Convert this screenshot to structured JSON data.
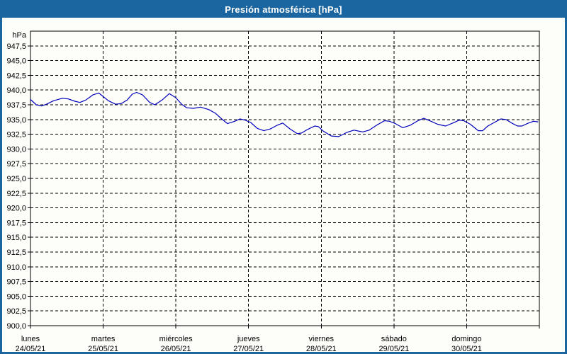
{
  "window": {
    "title": "Presión atmosférica [hPa]",
    "frame_color": "#1b66a0",
    "background": "#fdfdfa"
  },
  "chart_data": {
    "type": "line",
    "title": "Presión atmosférica [hPa]",
    "ylabel": "hPa",
    "ylim": [
      900,
      950
    ],
    "ytick_step": 2.5,
    "grid": true,
    "legend": "none",
    "decimal_separator": ",",
    "x_axis": {
      "unit": "days",
      "days": [
        {
          "label": "lunes",
          "date": "24/05/21"
        },
        {
          "label": "martes",
          "date": "25/05/21"
        },
        {
          "label": "miércoles",
          "date": "26/05/21"
        },
        {
          "label": "jueves",
          "date": "27/05/21"
        },
        {
          "label": "viernes",
          "date": "28/05/21"
        },
        {
          "label": "sábado",
          "date": "29/05/21"
        },
        {
          "label": "domingo",
          "date": "30/05/21"
        }
      ]
    },
    "series": [
      {
        "name": "Presión atmosférica",
        "color": "#0000bb",
        "x_unit": "days_from_start",
        "points": [
          [
            0.0,
            938.4
          ],
          [
            0.08,
            937.5
          ],
          [
            0.15,
            937.3
          ],
          [
            0.22,
            937.6
          ],
          [
            0.32,
            938.2
          ],
          [
            0.44,
            938.6
          ],
          [
            0.52,
            938.5
          ],
          [
            0.61,
            938.1
          ],
          [
            0.68,
            937.9
          ],
          [
            0.76,
            938.3
          ],
          [
            0.86,
            939.2
          ],
          [
            0.94,
            939.5
          ],
          [
            1.0,
            938.9
          ],
          [
            1.07,
            938.2
          ],
          [
            1.17,
            937.6
          ],
          [
            1.25,
            937.7
          ],
          [
            1.33,
            938.3
          ],
          [
            1.4,
            939.3
          ],
          [
            1.46,
            939.6
          ],
          [
            1.54,
            939.2
          ],
          [
            1.64,
            937.9
          ],
          [
            1.71,
            937.5
          ],
          [
            1.81,
            938.3
          ],
          [
            1.91,
            939.4
          ],
          [
            2.0,
            938.7
          ],
          [
            2.08,
            937.6
          ],
          [
            2.15,
            937.0
          ],
          [
            2.24,
            936.9
          ],
          [
            2.34,
            937.1
          ],
          [
            2.45,
            936.7
          ],
          [
            2.54,
            936.1
          ],
          [
            2.63,
            935.1
          ],
          [
            2.71,
            934.3
          ],
          [
            2.81,
            934.7
          ],
          [
            2.88,
            935.1
          ],
          [
            2.95,
            934.9
          ],
          [
            3.03,
            934.5
          ],
          [
            3.12,
            933.5
          ],
          [
            3.21,
            933.1
          ],
          [
            3.3,
            933.4
          ],
          [
            3.39,
            934.0
          ],
          [
            3.47,
            934.4
          ],
          [
            3.57,
            933.4
          ],
          [
            3.67,
            932.6
          ],
          [
            3.73,
            932.7
          ],
          [
            3.81,
            933.3
          ],
          [
            3.91,
            933.9
          ],
          [
            3.96,
            933.8
          ],
          [
            4.03,
            933.0
          ],
          [
            4.14,
            932.2
          ],
          [
            4.24,
            932.1
          ],
          [
            4.35,
            932.8
          ],
          [
            4.45,
            933.2
          ],
          [
            4.57,
            932.9
          ],
          [
            4.66,
            933.2
          ],
          [
            4.77,
            934.1
          ],
          [
            4.87,
            934.8
          ],
          [
            4.94,
            934.7
          ],
          [
            5.02,
            934.3
          ],
          [
            5.12,
            933.6
          ],
          [
            5.22,
            934.0
          ],
          [
            5.33,
            934.8
          ],
          [
            5.41,
            935.2
          ],
          [
            5.51,
            934.7
          ],
          [
            5.6,
            934.2
          ],
          [
            5.71,
            933.9
          ],
          [
            5.81,
            934.4
          ],
          [
            5.9,
            934.9
          ],
          [
            5.96,
            934.8
          ],
          [
            6.05,
            934.2
          ],
          [
            6.16,
            933.1
          ],
          [
            6.22,
            933.1
          ],
          [
            6.29,
            933.9
          ],
          [
            6.38,
            934.5
          ],
          [
            6.47,
            935.1
          ],
          [
            6.54,
            935.0
          ],
          [
            6.62,
            934.4
          ],
          [
            6.7,
            933.9
          ],
          [
            6.76,
            933.9
          ],
          [
            6.85,
            934.4
          ],
          [
            6.92,
            934.7
          ],
          [
            6.98,
            934.6
          ]
        ]
      }
    ]
  }
}
